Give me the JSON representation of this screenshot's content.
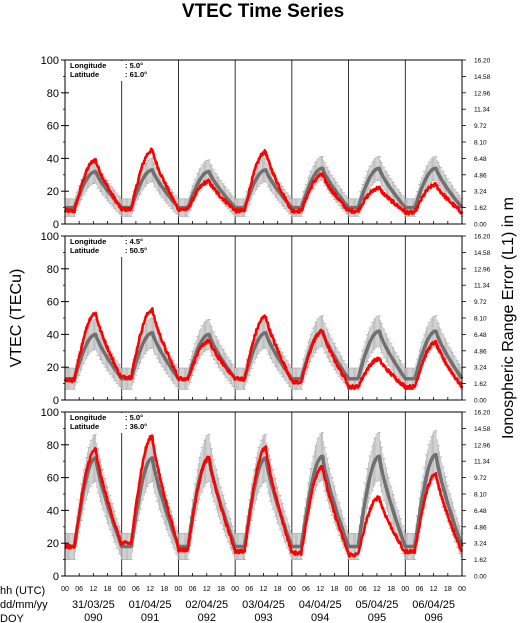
{
  "title": "VTEC Time Series",
  "y_left_label": "VTEC (TECu)",
  "y_right_label": "Ionospheric Range Error (L1) in m",
  "x_axis": {
    "row_labels": [
      "hh (UTC)",
      "dd/mm/yy",
      "DOY"
    ],
    "hour_ticks": [
      "00",
      "06",
      "12",
      "18",
      "00",
      "06",
      "12",
      "18",
      "00",
      "06",
      "12",
      "18",
      "00",
      "06",
      "12",
      "18",
      "00",
      "06",
      "12",
      "18",
      "00",
      "06",
      "12",
      "18",
      "00",
      "06",
      "12",
      "18",
      "00"
    ],
    "dates": [
      "31/03/25",
      "01/04/25",
      "02/04/25",
      "03/04/25",
      "04/04/25",
      "05/04/25",
      "06/04/25"
    ],
    "doy": [
      "090",
      "091",
      "092",
      "093",
      "094",
      "095",
      "096"
    ]
  },
  "left_ticks": [
    "0",
    "20",
    "40",
    "60",
    "80",
    "100"
  ],
  "right_ticks": [
    "0.00",
    "1.62",
    "3.24",
    "4.86",
    "6.48",
    "8.10",
    "9.72",
    "11.34",
    "12.96",
    "14.58",
    "16.20"
  ],
  "colors": {
    "observed": "#ff0000",
    "reference": "#707070",
    "spread": "#a8a8a8"
  },
  "chart_data": [
    {
      "type": "line",
      "location": {
        "longitude_label": "Longitude",
        "longitude_value": ":   5.0°",
        "latitude_label": "Latitude",
        "latitude_value": ": 61.0°"
      },
      "x_unit": "hours since 31/03/25 00 UTC",
      "xlim": [
        0,
        168
      ],
      "ylim": [
        0,
        100
      ],
      "y2lim": [
        0,
        16.2
      ],
      "grid": false,
      "series": [
        {
          "role": "observed",
          "daily_night_min": [
            8,
            9,
            9,
            8,
            8,
            8,
            7
          ],
          "daily_peak": [
            39,
            45,
            26,
            44,
            30,
            22,
            24
          ]
        },
        {
          "role": "reference",
          "daily_night_min": [
            10,
            10,
            10,
            10,
            10,
            10,
            10
          ],
          "daily_peak": [
            32,
            33,
            32,
            33,
            34,
            34,
            34
          ],
          "spread": 8
        }
      ]
    },
    {
      "type": "line",
      "location": {
        "longitude_label": "Longitude",
        "longitude_value": ":   4.5°",
        "latitude_label": "Latitude",
        "latitude_value": ": 50.5°"
      },
      "x_unit": "hours since 31/03/25 00 UTC",
      "xlim": [
        0,
        168
      ],
      "ylim": [
        0,
        100
      ],
      "y2lim": [
        0,
        16.2
      ],
      "grid": false,
      "series": [
        {
          "role": "observed",
          "daily_night_min": [
            12,
            14,
            13,
            13,
            11,
            8,
            8
          ],
          "daily_peak": [
            53,
            55,
            36,
            51,
            42,
            25,
            35
          ]
        },
        {
          "role": "reference",
          "daily_night_min": [
            13,
            13,
            13,
            13,
            13,
            13,
            13
          ],
          "daily_peak": [
            40,
            41,
            40,
            41,
            42,
            42,
            42
          ],
          "spread": 10
        }
      ]
    },
    {
      "type": "line",
      "location": {
        "longitude_label": "Longitude",
        "longitude_value": ":   5.0°",
        "latitude_label": "Latitude",
        "latitude_value": ": 36.0°"
      },
      "x_unit": "hours since 31/03/25 00 UTC",
      "xlim": [
        0,
        168
      ],
      "ylim": [
        0,
        100
      ],
      "y2lim": [
        0,
        16.2
      ],
      "grid": false,
      "series": [
        {
          "role": "observed",
          "daily_night_min": [
            18,
            20,
            16,
            15,
            14,
            13,
            15
          ],
          "daily_peak": [
            77,
            85,
            72,
            78,
            67,
            48,
            62
          ]
        },
        {
          "role": "reference",
          "daily_night_min": [
            18,
            18,
            18,
            18,
            18,
            18,
            18
          ],
          "daily_peak": [
            72,
            72,
            72,
            72,
            73,
            73,
            74
          ],
          "spread": 12
        }
      ]
    }
  ]
}
